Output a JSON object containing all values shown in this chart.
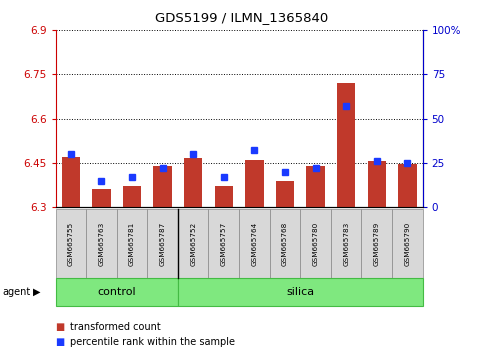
{
  "title": "GDS5199 / ILMN_1365840",
  "samples": [
    "GSM665755",
    "GSM665763",
    "GSM665781",
    "GSM665787",
    "GSM665752",
    "GSM665757",
    "GSM665764",
    "GSM665768",
    "GSM665780",
    "GSM665783",
    "GSM665789",
    "GSM665790"
  ],
  "red_values": [
    6.47,
    6.36,
    6.37,
    6.44,
    6.465,
    6.37,
    6.46,
    6.39,
    6.44,
    6.72,
    6.455,
    6.445
  ],
  "blue_values": [
    30,
    15,
    17,
    22,
    30,
    17,
    32,
    20,
    22,
    57,
    26,
    25
  ],
  "group_starts": [
    0,
    4
  ],
  "group_ends": [
    4,
    12
  ],
  "group_labels": [
    "control",
    "silica"
  ],
  "ylim_left": [
    6.3,
    6.9
  ],
  "ylim_right": [
    0,
    100
  ],
  "yticks_left": [
    6.3,
    6.45,
    6.6,
    6.75,
    6.9
  ],
  "yticks_right": [
    0,
    25,
    50,
    75,
    100
  ],
  "ytick_labels_right": [
    "0",
    "25",
    "50",
    "75",
    "100%"
  ],
  "bar_color": "#C0392B",
  "dot_color": "#1a3aff",
  "bar_width": 0.6,
  "legend_red": "transformed count",
  "legend_blue": "percentile rank within the sample",
  "bg_color": "#d8d8d8",
  "group_color": "#7FE87F"
}
